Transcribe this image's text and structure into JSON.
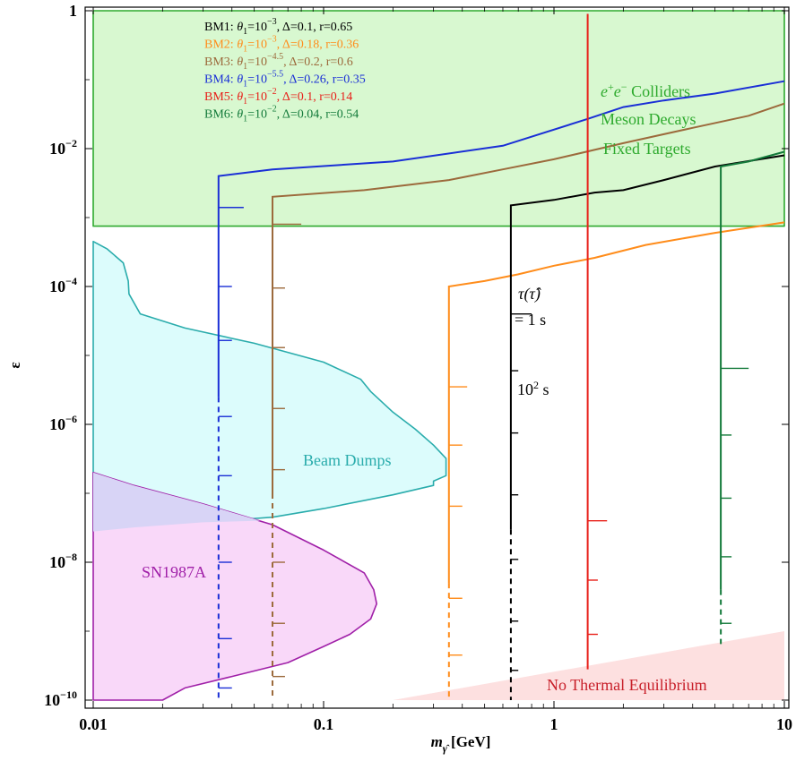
{
  "chart_data": {
    "type": "line",
    "xlabel": "m_γ̂ [GeV]",
    "xlabel_main": "m",
    "xlabel_sub": "γ̂",
    "xlabel_unit": "[GeV]",
    "ylabel": "ε",
    "xscale": "log",
    "yscale": "log",
    "xlim": [
      0.01,
      10
    ],
    "ylim": [
      1e-10,
      1
    ],
    "x_ticks": [
      {
        "v": 0.01,
        "label": "0.01"
      },
      {
        "v": 0.1,
        "label": "0.1"
      },
      {
        "v": 1,
        "label": "1"
      },
      {
        "v": 10,
        "label": "10"
      }
    ],
    "y_ticks": [
      {
        "v": 1,
        "base": "1",
        "exp": ""
      },
      {
        "v": 0.01,
        "base": "10",
        "exp": "−2"
      },
      {
        "v": 0.0001,
        "base": "10",
        "exp": "−4"
      },
      {
        "v": 1e-06,
        "base": "10",
        "exp": "−6"
      },
      {
        "v": 1e-08,
        "base": "10",
        "exp": "−8"
      },
      {
        "v": 1e-10,
        "base": "10",
        "exp": "−10"
      }
    ],
    "legend_placement": "top-left",
    "legend": [
      {
        "prefix": "BM1:",
        "theta": "θ",
        "sub": "1",
        "eq": "=10",
        "exp": "−3",
        "rest": ", Δ=0.1, r=0.65",
        "color": "#000000"
      },
      {
        "prefix": "BM2:",
        "theta": "θ",
        "sub": "1",
        "eq": "=10",
        "exp": "−3",
        "rest": ", Δ=0.18, r=0.36",
        "color": "#ff8c1a"
      },
      {
        "prefix": "BM3:",
        "theta": "θ",
        "sub": "1",
        "eq": "=10",
        "exp": "−4.5",
        "rest": ", Δ=0.2, r=0.6",
        "color": "#9c6a3c"
      },
      {
        "prefix": "BM4:",
        "theta": "θ",
        "sub": "1",
        "eq": "=10",
        "exp": "−5.5",
        "rest": ", Δ=0.26, r=0.35",
        "color": "#1a2fd6"
      },
      {
        "prefix": "BM5:",
        "theta": "θ",
        "sub": "1",
        "eq": "=10",
        "exp": "−2",
        "rest": ", Δ=0.1, r=0.14",
        "color": "#e8201a"
      },
      {
        "prefix": "BM6:",
        "theta": "θ",
        "sub": "1",
        "eq": "=10",
        "exp": "−2",
        "rest": ", Δ=0.04, r=0.54",
        "color": "#137a3a"
      }
    ],
    "regions": [
      {
        "name": "colliders",
        "fill": "#d8f8d0",
        "stroke": "#2eaa2e",
        "points": [
          [
            0.01,
            1
          ],
          [
            10,
            1
          ],
          [
            10,
            0.00075
          ],
          [
            0.01,
            0.00075
          ]
        ]
      },
      {
        "name": "beam-dumps",
        "fill": "#dcfcfc",
        "stroke": "#2aacac",
        "points": [
          [
            0.01,
            0.00045
          ],
          [
            0.0115,
            0.00035
          ],
          [
            0.0135,
            0.00022
          ],
          [
            0.0142,
            0.00012
          ],
          [
            0.0143,
            7.8e-05
          ],
          [
            0.016,
            4e-05
          ],
          [
            0.025,
            2.5e-05
          ],
          [
            0.05,
            1.5e-05
          ],
          [
            0.1,
            8e-06
          ],
          [
            0.145,
            4.5e-06
          ],
          [
            0.16,
            3e-06
          ],
          [
            0.2,
            1.5e-06
          ],
          [
            0.25,
            8.5e-07
          ],
          [
            0.3,
            5e-07
          ],
          [
            0.34,
            3.2e-07
          ],
          [
            0.34,
            1.8e-07
          ],
          [
            0.3,
            1.5e-07
          ],
          [
            0.3,
            1.3e-07
          ],
          [
            0.2,
            9.5e-08
          ],
          [
            0.1,
            6e-08
          ],
          [
            0.06,
            4.5e-08
          ],
          [
            0.03,
            3.8e-08
          ],
          [
            0.015,
            3.2e-08
          ],
          [
            0.01,
            2.8e-08
          ]
        ]
      },
      {
        "name": "sn1987a",
        "fill": "#f9d8f9",
        "stroke": "#a020a8",
        "points": [
          [
            0.01,
            2e-07
          ],
          [
            0.015,
            1.3e-07
          ],
          [
            0.03,
            7e-08
          ],
          [
            0.06,
            3.5e-08
          ],
          [
            0.1,
            1.5e-08
          ],
          [
            0.15,
            7e-09
          ],
          [
            0.165,
            4e-09
          ],
          [
            0.17,
            2.5e-09
          ],
          [
            0.16,
            1.5e-09
          ],
          [
            0.13,
            9e-10
          ],
          [
            0.1,
            6e-10
          ],
          [
            0.07,
            3.5e-10
          ],
          [
            0.04,
            2.2e-10
          ],
          [
            0.025,
            1.5e-10
          ],
          [
            0.02,
            1e-10
          ],
          [
            0.01,
            1e-10
          ]
        ]
      },
      {
        "name": "overlap",
        "fill": "#d8d4f6",
        "stroke": "none",
        "points": [
          [
            0.01,
            2e-07
          ],
          [
            0.015,
            1.3e-07
          ],
          [
            0.03,
            7e-08
          ],
          [
            0.053,
            4e-08
          ],
          [
            0.03,
            3.8e-08
          ],
          [
            0.015,
            3.2e-08
          ],
          [
            0.01,
            2.8e-08
          ]
        ]
      },
      {
        "name": "no-thermal",
        "fill": "#fde0e0",
        "stroke": "none",
        "points": [
          [
            0.2,
            1e-10
          ],
          [
            10,
            1e-10
          ],
          [
            10,
            1e-09
          ]
        ]
      }
    ],
    "series": [
      {
        "color": "#1a2fd6",
        "m": 0.035,
        "drop": 2.5e-06,
        "solid_end": 2.5e-06,
        "dash_end": 1e-10,
        "top": [
          [
            0.035,
            0.004
          ],
          [
            0.06,
            0.005
          ],
          [
            0.2,
            0.0065
          ],
          [
            0.6,
            0.011
          ],
          [
            1.4,
            0.027
          ],
          [
            2,
            0.04
          ],
          [
            3,
            0.05
          ],
          [
            5,
            0.063
          ],
          [
            10,
            0.095
          ]
        ],
        "ticks": [
          [
            0.035,
            0.0014,
            0.045
          ],
          [
            0.035,
            0.0001,
            0.04
          ],
          [
            0.035,
            1.65e-05,
            0.04
          ],
          [
            0.035,
            1.3e-06,
            0.04
          ],
          [
            0.035,
            1.8e-07,
            0.04
          ],
          [
            0.035,
            1e-08,
            0.04
          ],
          [
            0.035,
            7.8e-10,
            0.04
          ],
          [
            0.035,
            1.5e-10,
            0.04
          ]
        ]
      },
      {
        "color": "#9c6a3c",
        "m": 0.06,
        "drop": 1e-07,
        "solid_end": 1e-07,
        "dash_end": 1e-10,
        "top": [
          [
            0.06,
            0.002
          ],
          [
            0.15,
            0.0025
          ],
          [
            0.35,
            0.0035
          ],
          [
            0.6,
            0.005
          ],
          [
            1,
            0.007
          ],
          [
            2,
            0.012
          ],
          [
            4,
            0.02
          ],
          [
            7,
            0.03
          ],
          [
            10,
            0.045
          ]
        ],
        "ticks": [
          [
            0.06,
            0.0008,
            0.08
          ],
          [
            0.06,
            9.5e-05,
            0.068
          ],
          [
            0.06,
            1.3e-05,
            0.068
          ],
          [
            0.06,
            1.7e-06,
            0.068
          ],
          [
            0.06,
            2.2e-07,
            0.068
          ],
          [
            0.06,
            1e-08,
            0.068
          ],
          [
            0.06,
            1.3e-09,
            0.068
          ],
          [
            0.06,
            2.2e-10,
            0.068
          ]
        ]
      },
      {
        "color": "#ff8c1a",
        "m": 0.35,
        "drop": 5e-09,
        "solid_end": 5e-09,
        "dash_end": 1e-10,
        "top": [
          [
            0.35,
            0.0001
          ],
          [
            0.5,
            0.00012
          ],
          [
            0.7,
            0.00015
          ],
          [
            1,
            0.0002
          ],
          [
            1.5,
            0.00026
          ],
          [
            2.5,
            0.0004
          ],
          [
            5,
            0.0006
          ],
          [
            10,
            0.00085
          ]
        ],
        "ticks": [
          [
            0.35,
            3.5e-06,
            0.42
          ],
          [
            0.35,
            5e-07,
            0.4
          ],
          [
            0.35,
            6.5e-08,
            0.4
          ],
          [
            0.35,
            3e-09,
            0.4
          ],
          [
            0.35,
            4.5e-10,
            0.4
          ]
        ]
      },
      {
        "color": "#000000",
        "m": 0.65,
        "drop": 3e-08,
        "solid_end": 3e-08,
        "dash_end": 1e-10,
        "top": [
          [
            0.65,
            0.0015
          ],
          [
            1,
            0.0018
          ],
          [
            1.5,
            0.0023
          ],
          [
            2,
            0.0025
          ],
          [
            3,
            0.0035
          ],
          [
            5,
            0.0055
          ],
          [
            10,
            0.008
          ]
        ],
        "ticks": [
          [
            0.65,
            4e-05,
            0.8
          ],
          [
            0.65,
            6e-06,
            0.7
          ],
          [
            0.65,
            7.5e-07,
            0.7
          ],
          [
            0.65,
            9.5e-08,
            0.7
          ],
          [
            0.65,
            1.1e-08,
            0.7
          ],
          [
            0.65,
            1.4e-09,
            0.7
          ],
          [
            0.65,
            2.7e-10,
            0.7
          ]
        ]
      },
      {
        "color": "#e8201a",
        "m": 1.4,
        "drop": 2.8e-10,
        "solid_end": 2.8e-10,
        "dash_end": 2.8e-10,
        "top": [
          [
            1.4,
            0.9
          ]
        ],
        "ticks": [
          [
            1.4,
            4e-08,
            1.7
          ],
          [
            1.4,
            5.5e-09,
            1.55
          ],
          [
            1.4,
            9e-10,
            1.55
          ]
        ]
      },
      {
        "color": "#137a3a",
        "m": 5.3,
        "drop": 4e-09,
        "solid_end": 4e-09,
        "dash_end": 6.5e-10,
        "top": [
          [
            5.3,
            0.0055
          ],
          [
            7,
            0.0065
          ],
          [
            10,
            0.009
          ]
        ],
        "ticks": [
          [
            5.3,
            6.5e-06,
            7
          ],
          [
            5.3,
            7e-07,
            5.9
          ],
          [
            5.3,
            8.5e-08,
            5.9
          ],
          [
            5.3,
            1.2e-08,
            5.9
          ],
          [
            5.3,
            1.3e-09,
            5.9
          ]
        ]
      }
    ],
    "annotations": {
      "colliders_line1_base": "e",
      "colliders_line1_sup1": "+",
      "colliders_line1_mid": "e",
      "colliders_line1_sup2": "−",
      "colliders_line1_rest": " Colliders",
      "meson": "Meson Decays",
      "fixed": "Fixed Targets",
      "beam_dumps": "Beam Dumps",
      "sn": "SN1987A",
      "no_thermal": "No Thermal Equilibrium",
      "tau_line1": "τ(τ̂)",
      "tau_line2": "= 1 s",
      "tau_100_base": "10",
      "tau_100_exp": "2",
      "tau_100_unit": " s"
    }
  }
}
